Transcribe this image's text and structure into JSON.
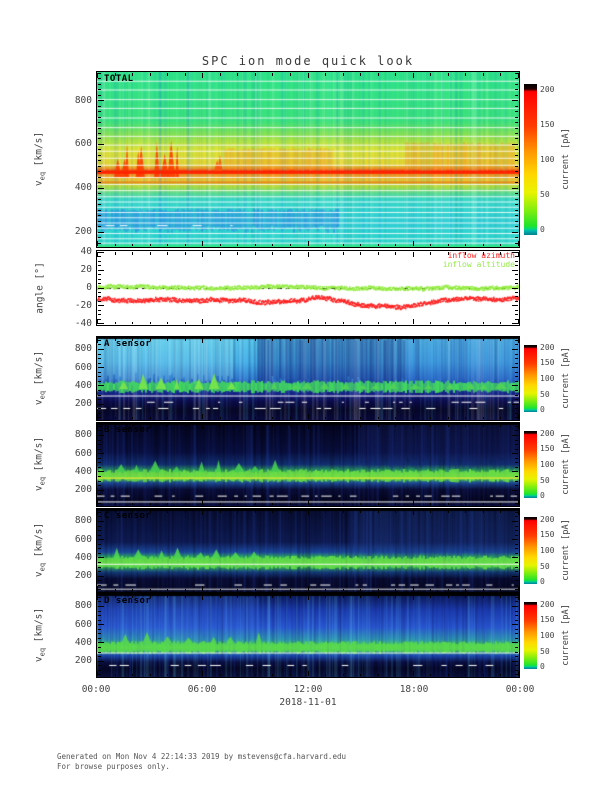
{
  "title": "SPC ion mode quick look",
  "footer": {
    "line1": "Generated on Mon Nov  4 22:14:33 2019 by mstevens@cfa.harvard.edu",
    "line2": "For browse purposes only."
  },
  "time_axis": {
    "ticks": [
      "00:00",
      "06:00",
      "12:00",
      "18:00",
      "00:00"
    ],
    "date": "2018-11-01"
  },
  "colorbar": {
    "label": "current [pA]",
    "max": 200,
    "ticks": [
      200,
      150,
      100,
      50,
      0
    ],
    "cap": 0.035,
    "stops": [
      [
        0,
        "#000000"
      ],
      [
        0.034,
        "#200000"
      ],
      [
        0.05,
        "#ff0000"
      ],
      [
        0.28,
        "#ff3c00"
      ],
      [
        0.45,
        "#ff9800"
      ],
      [
        0.6,
        "#ffd800"
      ],
      [
        0.72,
        "#e8f400"
      ],
      [
        0.84,
        "#7cee10"
      ],
      [
        0.94,
        "#20e42c"
      ],
      [
        0.962,
        "#00dc7c"
      ],
      [
        0.968,
        "#00c0b4"
      ],
      [
        1,
        "#007e8c"
      ]
    ]
  },
  "chart_data": [
    {
      "type": "heatmap",
      "id": "total-spectrogram",
      "label": "TOTAL",
      "ylabel": {
        "main": "v",
        "sub": "eq",
        "units": " [km/s]"
      },
      "yticks": [
        {
          "v": "800",
          "f": 0.164
        },
        {
          "v": "600",
          "f": 0.414
        },
        {
          "v": "400",
          "f": 0.665
        },
        {
          "v": "200",
          "f": 0.915
        }
      ],
      "minors": 7,
      "clabel": "current [pA]",
      "cticks": [
        0,
        50,
        100,
        150,
        200
      ],
      "render": {
        "stops": [
          [
            0,
            "#2fe488"
          ],
          [
            0.28,
            "#3ce27a"
          ],
          [
            0.37,
            "#97e24a"
          ],
          [
            0.44,
            "#dfe432"
          ],
          [
            0.53,
            "#e9d42c"
          ],
          [
            0.555,
            "#f4861c"
          ],
          [
            0.565,
            "#ff2600"
          ],
          [
            0.58,
            "#f4861c"
          ],
          [
            0.615,
            "#eec42e"
          ],
          [
            0.655,
            "#b4dc38"
          ],
          [
            0.69,
            "#62dc8c"
          ],
          [
            0.73,
            "#38d8c8"
          ],
          [
            0.86,
            "#32d0d6"
          ],
          [
            0.97,
            "#2fd8cc"
          ],
          [
            1,
            "#38e0a0"
          ]
        ],
        "stripes": {
          "alpha": 0.16,
          "density": 0.75,
          "colors": [
            "#18b8c8",
            "#70ffc0",
            "#1070e0",
            "#ffffff",
            "#0a9890"
          ]
        },
        "features": [
          {
            "type": "noiserect",
            "x0": 0.0,
            "x1": 0.57,
            "y0": 0.79,
            "y1": 0.9,
            "color": "#2666ea",
            "alpha": 0.45
          },
          {
            "type": "noiserect",
            "x0": 0.3,
            "x1": 0.56,
            "y0": 0.44,
            "y1": 0.56,
            "color": "#f07c1e",
            "alpha": 0.4
          },
          {
            "type": "noiserect",
            "x0": 0.73,
            "x1": 0.99,
            "y0": 0.41,
            "y1": 0.57,
            "color": "#f08422",
            "alpha": 0.45
          },
          {
            "type": "spikes",
            "x0": 0.035,
            "x1": 0.115,
            "yBase": 0.6,
            "hMax": 0.26,
            "n": 5,
            "w": 3,
            "color": "#fb3a00"
          },
          {
            "type": "spikes",
            "x0": 0.125,
            "x1": 0.2,
            "yBase": 0.6,
            "hMax": 0.22,
            "n": 4,
            "w": 3,
            "color": "#fb3a00"
          },
          {
            "type": "spikes",
            "x0": 0.27,
            "x1": 0.31,
            "yBase": 0.58,
            "hMax": 0.12,
            "n": 2,
            "w": 3,
            "color": "#f65510"
          },
          {
            "type": "hline",
            "y": 0.565,
            "w": 3,
            "color": "#ff2200",
            "alpha": 0.95
          },
          {
            "type": "hline",
            "y": 0.625,
            "w": 2,
            "color": "#f07818",
            "alpha": 0.8
          },
          {
            "type": "hlines",
            "ys": [
              0.05,
              0.1,
              0.155,
              0.205,
              0.26,
              0.315,
              0.365,
              0.415,
              0.45,
              0.49,
              0.53,
              0.6,
              0.64,
              0.675,
              0.71,
              0.74,
              0.77,
              0.8,
              0.83,
              0.86,
              0.89,
              0.92,
              0.95,
              0.975
            ],
            "w": 1,
            "color": "#ffffff",
            "alpha": 0.85
          },
          {
            "type": "dashline",
            "y": 0.875,
            "x0": 0.02,
            "x1": 0.35,
            "color": "#ffffff"
          },
          {
            "type": "hline",
            "y": 0.99,
            "w": 2,
            "color": "#2ee47c",
            "alpha": 0.9
          }
        ]
      }
    },
    {
      "type": "line",
      "id": "flow-angles",
      "ylabel": "angle [°]",
      "yticks": [
        {
          "v": "40",
          "f": 0.02
        },
        {
          "v": "20",
          "f": 0.26
        },
        {
          "v": "0",
          "f": 0.5
        },
        {
          "v": "-20",
          "f": 0.74
        },
        {
          "v": "-40",
          "f": 0.98
        }
      ],
      "minors": 3,
      "zero_line": true,
      "series": [
        {
          "name": "inflow azimuth",
          "color": "#ff2222",
          "base": -12,
          "wander": 1.1,
          "jitter": 4.5,
          "dips": [
            {
              "x0": 0.55,
              "x1": 0.74,
              "v": -19
            },
            {
              "x0": 0.27,
              "x1": 0.43,
              "v": -15
            }
          ]
        },
        {
          "name": "inflow altitude",
          "color": "#94ec44",
          "base": 1,
          "wander": 0.9,
          "jitter": 4,
          "dips": [
            {
              "x0": 0.55,
              "x1": 0.7,
              "v": -1
            }
          ]
        }
      ]
    },
    {
      "type": "heatmap",
      "id": "a-sensor-spectrogram",
      "label": "A sensor",
      "ylabel": {
        "main": "v",
        "sub": "eq",
        "units": " [km/s]"
      },
      "yticks": [
        {
          "v": "800",
          "f": 0.15
        },
        {
          "v": "600",
          "f": 0.37
        },
        {
          "v": "400",
          "f": 0.59
        },
        {
          "v": "200",
          "f": 0.81
        }
      ],
      "minors": 3,
      "clabel": "current [pA]",
      "cticks": [
        0,
        50,
        100,
        150,
        200
      ],
      "render": {
        "stops": [
          [
            0,
            "#000010"
          ],
          [
            0.02,
            "#58c8ec"
          ],
          [
            0.3,
            "#46b0e8"
          ],
          [
            0.5,
            "#2f7ad0"
          ],
          [
            0.6,
            "#2246b4"
          ],
          [
            0.7,
            "#141d80"
          ],
          [
            0.78,
            "#0c0c48"
          ],
          [
            0.88,
            "#070724"
          ],
          [
            1,
            "#0a0a3a"
          ]
        ],
        "stripes": {
          "alpha": 0.18,
          "density": 0.8,
          "colors": [
            "#0a1a60",
            "#56c8f0",
            "#ffffff",
            "#08083a"
          ]
        },
        "features": [
          {
            "type": "noiserect",
            "x0": 0,
            "x1": 0.32,
            "y0": 0.02,
            "y1": 0.52,
            "color": "#a6eef2",
            "alpha": 0.33
          },
          {
            "type": "noiserect",
            "x0": 0.38,
            "x1": 0.73,
            "y0": 0.02,
            "y1": 0.56,
            "color": "#0e1a74",
            "alpha": 0.5
          },
          {
            "type": "noiserect",
            "x0": 0.73,
            "x1": 1,
            "y0": 0.02,
            "y1": 0.58,
            "color": "#2748b8",
            "alpha": 0.3
          },
          {
            "type": "band",
            "y": 0.6,
            "h": 0.1,
            "color": "#42da5c",
            "jitter": 0.8
          },
          {
            "type": "spikes",
            "x0": 0.04,
            "x1": 0.34,
            "yBase": 0.63,
            "hMax": 0.2,
            "n": 7,
            "w": 4,
            "color": "#7ce84a"
          },
          {
            "type": "spikes",
            "x0": 0.4,
            "x1": 0.98,
            "yBase": 0.625,
            "hMax": 0.1,
            "n": 14,
            "w": 5,
            "color": "#52d455"
          },
          {
            "type": "hline",
            "y": 0.705,
            "w": 1,
            "color": "#ffffff",
            "alpha": 0.95
          },
          {
            "type": "dashline",
            "y": 0.78,
            "x0": 0,
            "x1": 1,
            "color": "#ffffff"
          },
          {
            "type": "dashline",
            "y": 0.855,
            "x0": 0,
            "x1": 1,
            "color": "#ffffff"
          },
          {
            "type": "hline",
            "y": 0.0,
            "w": 2,
            "color": "#000000",
            "alpha": 1
          }
        ]
      }
    },
    {
      "type": "heatmap",
      "id": "b-sensor-spectrogram",
      "label": "B sensor",
      "ylabel": {
        "main": "v",
        "sub": "eq",
        "units": " [km/s]"
      },
      "yticks": [
        {
          "v": "800",
          "f": 0.15
        },
        {
          "v": "600",
          "f": 0.37
        },
        {
          "v": "400",
          "f": 0.59
        },
        {
          "v": "200",
          "f": 0.81
        }
      ],
      "minors": 3,
      "clabel": "current [pA]",
      "cticks": [
        0,
        50,
        100,
        150,
        200
      ],
      "render": {
        "stops": [
          [
            0,
            "#04041a"
          ],
          [
            0.35,
            "#090f3c"
          ],
          [
            0.5,
            "#123070"
          ],
          [
            0.57,
            "#2aa05c"
          ],
          [
            0.63,
            "#90e040"
          ],
          [
            0.67,
            "#55d850"
          ],
          [
            0.72,
            "#1e4c96"
          ],
          [
            0.8,
            "#0a0d36"
          ],
          [
            0.93,
            "#05051c"
          ],
          [
            1,
            "#0a0f3c"
          ]
        ],
        "stripes": {
          "alpha": 0.2,
          "density": 0.8,
          "colors": [
            "#131f6e",
            "#000008",
            "#2a4cc0"
          ]
        },
        "features": [
          {
            "type": "noiserect",
            "x0": 0.62,
            "x1": 1,
            "y0": 0.0,
            "y1": 0.5,
            "color": "#1b2a72",
            "alpha": 0.45
          },
          {
            "type": "band",
            "y": 0.635,
            "h": 0.1,
            "color": "#6ade44",
            "jitter": 0.9
          },
          {
            "type": "spikes",
            "x0": 0.03,
            "x1": 0.45,
            "yBase": 0.59,
            "hMax": 0.16,
            "n": 9,
            "w": 4,
            "color": "#48d050"
          },
          {
            "type": "hline",
            "y": 0.655,
            "w": 1.5,
            "color": "#e6e63a",
            "alpha": 0.85
          },
          {
            "type": "dashline",
            "y": 0.875,
            "x0": 0,
            "x1": 1,
            "color": "#ffffff"
          },
          {
            "type": "hline",
            "y": 0.945,
            "w": 1,
            "color": "#ffffff",
            "alpha": 0.95
          },
          {
            "type": "hline",
            "y": 0.0,
            "w": 2,
            "color": "#000000",
            "alpha": 1
          }
        ]
      }
    },
    {
      "type": "heatmap",
      "id": "c-sensor-spectrogram",
      "label": "C sensor",
      "ylabel": {
        "main": "v",
        "sub": "eq",
        "units": " [km/s]"
      },
      "yticks": [
        {
          "v": "800",
          "f": 0.15
        },
        {
          "v": "600",
          "f": 0.37
        },
        {
          "v": "400",
          "f": 0.59
        },
        {
          "v": "200",
          "f": 0.81
        }
      ],
      "minors": 3,
      "clabel": "current [pA]",
      "cticks": [
        0,
        50,
        100,
        150,
        200
      ],
      "render": {
        "stops": [
          [
            0,
            "#070c2c"
          ],
          [
            0.4,
            "#0e1a4e"
          ],
          [
            0.52,
            "#1c4a9c"
          ],
          [
            0.58,
            "#2fb45e"
          ],
          [
            0.645,
            "#7cdf40"
          ],
          [
            0.7,
            "#38b45c"
          ],
          [
            0.76,
            "#143c78"
          ],
          [
            0.84,
            "#090b30"
          ],
          [
            1,
            "#060820"
          ]
        ],
        "stripes": {
          "alpha": 0.2,
          "density": 0.8,
          "colors": [
            "#16256e",
            "#000010",
            "#2a4cc0"
          ]
        },
        "features": [
          {
            "type": "noiserect",
            "x0": 0.6,
            "x1": 1,
            "y0": 0.0,
            "y1": 0.55,
            "color": "#22428e",
            "alpha": 0.4
          },
          {
            "type": "band",
            "y": 0.645,
            "h": 0.11,
            "color": "#62dc48",
            "jitter": 0.8
          },
          {
            "type": "spikes",
            "x0": 0.03,
            "x1": 0.4,
            "yBase": 0.6,
            "hMax": 0.17,
            "n": 8,
            "w": 4,
            "color": "#50d84e"
          },
          {
            "type": "hline",
            "y": 0.66,
            "w": 1,
            "color": "#ffffff",
            "alpha": 0.95
          },
          {
            "type": "dashline",
            "y": 0.91,
            "x0": 0,
            "x1": 1,
            "color": "#ffffff"
          },
          {
            "type": "hline",
            "y": 0.96,
            "w": 1,
            "color": "#ffffff",
            "alpha": 0.9
          },
          {
            "type": "hline",
            "y": 0.0,
            "w": 2,
            "color": "#000000",
            "alpha": 1
          }
        ]
      }
    },
    {
      "type": "heatmap",
      "id": "d-sensor-spectrogram",
      "label": "D sensor",
      "ylabel": {
        "main": "v",
        "sub": "eq",
        "units": " [km/s]"
      },
      "yticks": [
        {
          "v": "800",
          "f": 0.15
        },
        {
          "v": "600",
          "f": 0.37
        },
        {
          "v": "400",
          "f": 0.59
        },
        {
          "v": "200",
          "f": 0.81
        }
      ],
      "minors": 3,
      "clabel": "current [pA]",
      "cticks": [
        0,
        50,
        100,
        150,
        200
      ],
      "render": {
        "stops": [
          [
            0,
            "#0a1448"
          ],
          [
            0.2,
            "#1c3cae"
          ],
          [
            0.4,
            "#2a58d2"
          ],
          [
            0.55,
            "#2f9ab0"
          ],
          [
            0.6,
            "#44c668"
          ],
          [
            0.645,
            "#72dc48"
          ],
          [
            0.69,
            "#3cb470"
          ],
          [
            0.74,
            "#1e4cb4"
          ],
          [
            0.82,
            "#0a0e3c"
          ],
          [
            0.9,
            "#05051e"
          ],
          [
            1,
            "#0a1034"
          ]
        ],
        "stripes": {
          "alpha": 0.22,
          "density": 0.85,
          "colors": [
            "#1c3cb0",
            "#62c8f0",
            "#0a0f50"
          ]
        },
        "features": [
          {
            "type": "noiserect",
            "x0": 0,
            "x1": 0.38,
            "y0": 0.02,
            "y1": 0.55,
            "color": "#3a72e2",
            "alpha": 0.3
          },
          {
            "type": "band",
            "y": 0.645,
            "h": 0.1,
            "color": "#58da4c",
            "jitter": 0.8
          },
          {
            "type": "spikes",
            "x0": 0.05,
            "x1": 0.4,
            "yBase": 0.6,
            "hMax": 0.15,
            "n": 7,
            "w": 4,
            "color": "#55d64e"
          },
          {
            "type": "hline",
            "y": 0.705,
            "w": 1,
            "color": "#ffffff",
            "alpha": 0.9
          },
          {
            "type": "dashline",
            "y": 0.855,
            "x0": 0,
            "x1": 1,
            "color": "#ffffff"
          },
          {
            "type": "hline",
            "y": 0.0,
            "w": 2,
            "color": "#000000",
            "alpha": 1
          }
        ]
      }
    }
  ]
}
